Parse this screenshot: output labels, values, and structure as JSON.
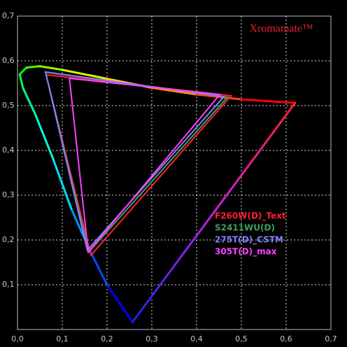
{
  "chart_data": {
    "type": "line",
    "title": "Xromamate™",
    "title_color": "#e8202c",
    "xlim": [
      0,
      0.7
    ],
    "ylim": [
      0,
      0.7
    ],
    "xticks": [
      {
        "value": 0,
        "label": "0,0"
      },
      {
        "value": 0.1,
        "label": "0,1"
      },
      {
        "value": 0.2,
        "label": "0,2"
      },
      {
        "value": 0.3,
        "label": "0,3"
      },
      {
        "value": 0.4,
        "label": "0,4"
      },
      {
        "value": 0.5,
        "label": "0,5"
      },
      {
        "value": 0.6,
        "label": "0,6"
      },
      {
        "value": 0.7,
        "label": "0,7"
      }
    ],
    "yticks": [
      {
        "value": 0.1,
        "label": "0,1"
      },
      {
        "value": 0.2,
        "label": "0,2"
      },
      {
        "value": 0.3,
        "label": "0,3"
      },
      {
        "value": 0.4,
        "label": "0,4"
      },
      {
        "value": 0.5,
        "label": "0,5"
      },
      {
        "value": 0.6,
        "label": "0,6"
      },
      {
        "value": 0.7,
        "label": "0,7"
      }
    ],
    "grid": true,
    "spectral_locus": {
      "x": [
        0.2568,
        0.2,
        0.16,
        0.12,
        0.08,
        0.04,
        0.012,
        0.005,
        0.02,
        0.05,
        0.1,
        0.2,
        0.3,
        0.4,
        0.5,
        0.62
      ],
      "y": [
        0.0165,
        0.1,
        0.18,
        0.27,
        0.38,
        0.48,
        0.54,
        0.57,
        0.585,
        0.588,
        0.58,
        0.56,
        0.54,
        0.525,
        0.514,
        0.506
      ]
    },
    "series": [
      {
        "name": "F260W(D)_Text",
        "color": "#ff2030",
        "x": [
          0.477,
          0.064,
          0.164
        ],
        "y": [
          0.522,
          0.569,
          0.166
        ]
      },
      {
        "name": "S2411WU(D)",
        "color": "#40a060",
        "x": [
          0.469,
          0.0625,
          0.159
        ],
        "y": [
          0.519,
          0.575,
          0.173
        ]
      },
      {
        "name": "275T(D)_CSTM",
        "color": "#8080ff",
        "x": [
          0.461,
          0.0625,
          0.156
        ],
        "y": [
          0.52,
          0.575,
          0.177
        ]
      },
      {
        "name": "305T(D)_max",
        "color": "#ff40ff",
        "x": [
          0.452,
          0.116,
          0.158
        ],
        "y": [
          0.525,
          0.561,
          0.173
        ]
      }
    ]
  }
}
